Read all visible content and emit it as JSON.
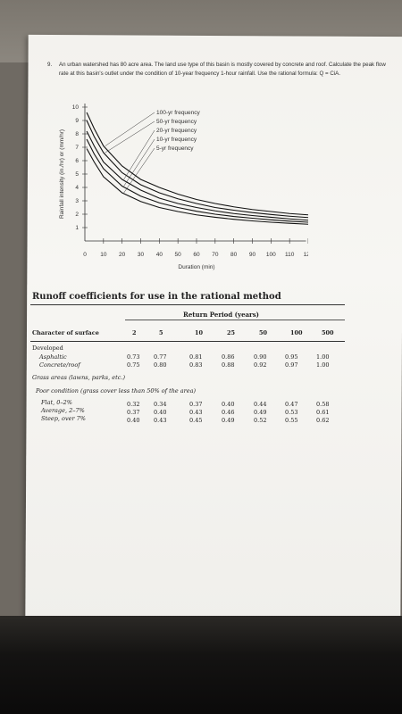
{
  "problem": {
    "number": "9.",
    "text": "An urban watershed has 80 acre area. The land use type of this basin is mostly covered by concrete and roof. Calculate the peak flow rate at this basin's outlet under the condition of 10-year frequency 1-hour rainfall. Use the rational formula: Q = CiA."
  },
  "chart_data": {
    "type": "line",
    "xlabel": "Duration (min)",
    "ylabel": "Rainfall intensity (in./hr) or (mm/hr)",
    "xlim": [
      0,
      120
    ],
    "ylim": [
      0,
      10
    ],
    "x_ticks": [
      "0",
      "10",
      "20",
      "30",
      "40",
      "50",
      "60",
      "70",
      "80",
      "90",
      "100",
      "110",
      "120"
    ],
    "y_ticks": [
      "1",
      "2",
      "3",
      "4",
      "5",
      "6",
      "7",
      "8",
      "9",
      "10"
    ],
    "x": [
      1,
      5,
      10,
      20,
      30,
      40,
      50,
      60,
      70,
      80,
      90,
      100,
      110,
      120
    ],
    "series": [
      {
        "name": "100-yr frequency",
        "values": [
          9.6,
          8.4,
          7.1,
          5.6,
          4.6,
          4.0,
          3.5,
          3.1,
          2.8,
          2.55,
          2.35,
          2.2,
          2.05,
          1.95
        ]
      },
      {
        "name": "50-yr frequency",
        "values": [
          9.0,
          7.8,
          6.6,
          5.1,
          4.2,
          3.6,
          3.15,
          2.8,
          2.5,
          2.3,
          2.12,
          1.98,
          1.85,
          1.75
        ]
      },
      {
        "name": "20-yr frequency",
        "values": [
          8.2,
          7.1,
          5.9,
          4.6,
          3.8,
          3.2,
          2.8,
          2.5,
          2.25,
          2.05,
          1.9,
          1.77,
          1.65,
          1.55
        ]
      },
      {
        "name": "10-yr frequency",
        "values": [
          7.6,
          6.5,
          5.4,
          4.1,
          3.35,
          2.85,
          2.5,
          2.22,
          2.0,
          1.83,
          1.7,
          1.58,
          1.48,
          1.4
        ]
      },
      {
        "name": "5-yr frequency",
        "values": [
          6.9,
          5.9,
          4.8,
          3.6,
          2.95,
          2.5,
          2.2,
          1.95,
          1.77,
          1.62,
          1.5,
          1.4,
          1.32,
          1.25
        ]
      }
    ]
  },
  "table": {
    "title": "Runoff coefficients for use in the rational method",
    "group_header": "Return Period (years)",
    "col_first": "Character of surface",
    "columns": [
      "2",
      "5",
      "10",
      "25",
      "50",
      "100",
      "500"
    ],
    "rows": [
      {
        "label": "Developed",
        "style": "plain",
        "values": []
      },
      {
        "label": "Asphaltic",
        "style": "italic",
        "values": [
          "0.73",
          "0.77",
          "0.81",
          "0.86",
          "0.90",
          "0.95",
          "1.00"
        ]
      },
      {
        "label": "Concrete/roof",
        "style": "italic",
        "values": [
          "0.75",
          "0.80",
          "0.83",
          "0.88",
          "0.92",
          "0.97",
          "1.00"
        ]
      },
      {
        "label": "Grass areas (lawns, parks, etc.)",
        "style": "italic",
        "values": []
      },
      {
        "label": "Poor condition (grass cover less than 50% of the area)",
        "style": "italic",
        "values": []
      },
      {
        "label": "Flat, 0–2%",
        "style": "italic",
        "values": [
          "0.32",
          "0.34",
          "0.37",
          "0.40",
          "0.44",
          "0.47",
          "0.58"
        ]
      },
      {
        "label": "Average, 2–7%",
        "style": "italic",
        "values": [
          "0.37",
          "0.40",
          "0.43",
          "0.46",
          "0.49",
          "0.53",
          "0.61"
        ]
      },
      {
        "label": "Steep, over 7%",
        "style": "italic",
        "values": [
          "0.40",
          "0.43",
          "0.45",
          "0.49",
          "0.52",
          "0.55",
          "0.62"
        ]
      }
    ]
  }
}
